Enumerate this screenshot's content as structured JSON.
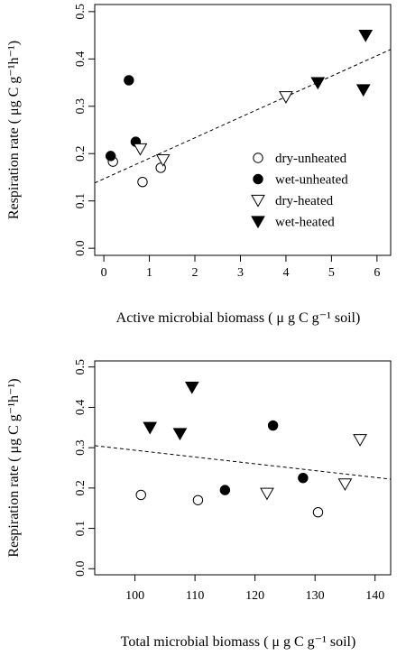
{
  "chart_data": [
    {
      "type": "scatter",
      "xlabel": "Active microbial biomass ( μ g C g⁻¹ soil)",
      "ylabel": "Respiration rate ( μg C g⁻¹h⁻¹)",
      "xlim": [
        -0.2,
        6.3
      ],
      "ylim": [
        -0.015,
        0.515
      ],
      "xticks": [
        0,
        1,
        2,
        3,
        4,
        5,
        6
      ],
      "yticks": [
        0.0,
        0.1,
        0.2,
        0.3,
        0.4,
        0.5
      ],
      "grid": false,
      "legend_position": "right",
      "series": [
        {
          "name": "dry-unheated",
          "marker": "circle-open",
          "points": [
            [
              0.2,
              0.183
            ],
            [
              0.85,
              0.14
            ],
            [
              1.25,
              0.17
            ]
          ]
        },
        {
          "name": "wet-unheated",
          "marker": "circle-filled",
          "points": [
            [
              0.15,
              0.195
            ],
            [
              0.55,
              0.355
            ],
            [
              0.7,
              0.225
            ]
          ]
        },
        {
          "name": "dry-heated",
          "marker": "triangle-open",
          "points": [
            [
              0.8,
              0.21
            ],
            [
              1.3,
              0.187
            ],
            [
              4.0,
              0.32
            ]
          ]
        },
        {
          "name": "wet-heated",
          "marker": "triangle-filled",
          "points": [
            [
              4.7,
              0.35
            ],
            [
              5.7,
              0.335
            ],
            [
              5.75,
              0.45
            ]
          ]
        }
      ],
      "fit_line": {
        "style": "dashed",
        "points": [
          [
            -0.2,
            0.138
          ],
          [
            6.3,
            0.42
          ]
        ]
      }
    },
    {
      "type": "scatter",
      "xlabel": "Total microbial biomass ( μ g C g⁻¹ soil)",
      "ylabel": "Respiration rate ( μg C g⁻¹h⁻¹)",
      "xlim": [
        93.3,
        142.6
      ],
      "ylim": [
        -0.015,
        0.515
      ],
      "xticks": [
        100,
        110,
        120,
        130,
        140
      ],
      "yticks": [
        0.0,
        0.1,
        0.2,
        0.3,
        0.4,
        0.5
      ],
      "grid": false,
      "series": [
        {
          "name": "dry-unheated",
          "marker": "circle-open",
          "points": [
            [
              101.0,
              0.183
            ],
            [
              110.5,
              0.17
            ],
            [
              130.5,
              0.14
            ]
          ]
        },
        {
          "name": "wet-unheated",
          "marker": "circle-filled",
          "points": [
            [
              115.0,
              0.195
            ],
            [
              123.0,
              0.355
            ],
            [
              128.0,
              0.225
            ]
          ]
        },
        {
          "name": "dry-heated",
          "marker": "triangle-open",
          "points": [
            [
              122.0,
              0.187
            ],
            [
              135.0,
              0.21
            ],
            [
              137.5,
              0.32
            ]
          ]
        },
        {
          "name": "wet-heated",
          "marker": "triangle-filled",
          "points": [
            [
              102.5,
              0.35
            ],
            [
              107.5,
              0.335
            ],
            [
              109.5,
              0.45
            ]
          ]
        }
      ],
      "fit_line": {
        "style": "dashed",
        "points": [
          [
            93.3,
            0.305
          ],
          [
            142.6,
            0.222
          ]
        ]
      }
    }
  ]
}
